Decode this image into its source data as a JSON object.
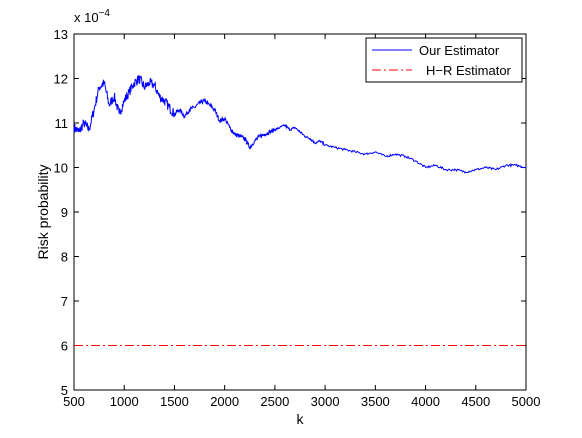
{
  "chart_data": {
    "type": "line",
    "title": "",
    "xlabel": "k",
    "ylabel": "Risk probability",
    "xlim": [
      500,
      5000
    ],
    "ylim": [
      5,
      13
    ],
    "y_multiplier_label": "x 10",
    "y_multiplier_exponent": "−4",
    "x_ticks": [
      500,
      1000,
      1500,
      2000,
      2500,
      3000,
      3500,
      4000,
      4500,
      5000
    ],
    "y_ticks": [
      5,
      6,
      7,
      8,
      9,
      10,
      11,
      12,
      13
    ],
    "grid": false,
    "legend_position": "top-right",
    "series": [
      {
        "name": "Our Estimator",
        "color": "#0000ff",
        "style": "solid",
        "x": [
          500,
          550,
          600,
          650,
          700,
          750,
          800,
          850,
          900,
          950,
          1000,
          1050,
          1100,
          1150,
          1200,
          1250,
          1300,
          1350,
          1400,
          1450,
          1500,
          1550,
          1600,
          1650,
          1700,
          1750,
          1800,
          1850,
          1900,
          1950,
          2000,
          2050,
          2100,
          2150,
          2200,
          2250,
          2300,
          2350,
          2400,
          2450,
          2500,
          2550,
          2600,
          2650,
          2700,
          2750,
          2800,
          2850,
          2900,
          2950,
          3000,
          3100,
          3200,
          3300,
          3400,
          3500,
          3600,
          3700,
          3800,
          3900,
          4000,
          4100,
          4200,
          4300,
          4400,
          4500,
          4600,
          4700,
          4800,
          4900,
          5000
        ],
        "values": [
          10.9,
          10.8,
          11.0,
          10.85,
          11.3,
          11.8,
          11.9,
          11.4,
          11.6,
          11.2,
          11.5,
          11.7,
          11.9,
          12.0,
          11.8,
          11.9,
          11.85,
          11.6,
          11.5,
          11.35,
          11.2,
          11.3,
          11.15,
          11.3,
          11.35,
          11.45,
          11.5,
          11.4,
          11.3,
          11.05,
          11.1,
          10.9,
          10.75,
          10.7,
          10.65,
          10.45,
          10.6,
          10.7,
          10.75,
          10.8,
          10.85,
          10.9,
          10.95,
          10.85,
          10.9,
          10.8,
          10.7,
          10.65,
          10.55,
          10.6,
          10.5,
          10.45,
          10.4,
          10.35,
          10.3,
          10.35,
          10.25,
          10.3,
          10.25,
          10.15,
          10.0,
          10.05,
          9.95,
          9.95,
          9.9,
          9.95,
          10.0,
          9.95,
          10.05,
          10.05,
          10.0
        ]
      },
      {
        "name": "H−R Estimator",
        "color": "#ff0000",
        "style": "dash-dot",
        "x": [
          500,
          5000
        ],
        "values": [
          6.0,
          6.0
        ]
      }
    ]
  }
}
